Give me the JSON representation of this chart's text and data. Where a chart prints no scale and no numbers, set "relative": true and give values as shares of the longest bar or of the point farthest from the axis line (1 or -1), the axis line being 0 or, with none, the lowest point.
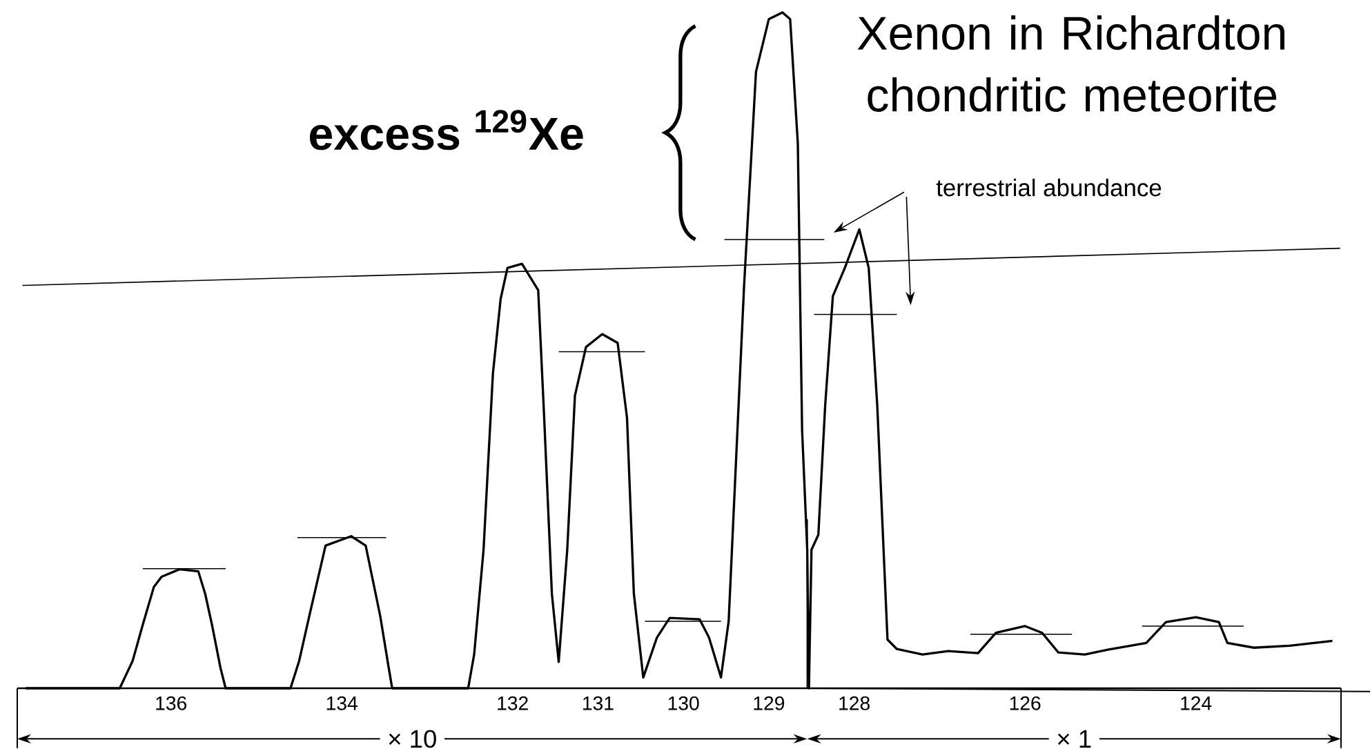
{
  "chart_data": {
    "type": "line",
    "title": "Xenon in Richardton chondritic meteorite",
    "relative": true,
    "xlim": [
      137.8,
      122.3
    ],
    "xticks": [
      136,
      134,
      132,
      131,
      130,
      129,
      128,
      126,
      124
    ],
    "series": [
      {
        "color": "#000000",
        "x": [
          137.7,
          136.6,
          136.45,
          136.33,
          136.2,
          136.11,
          135.9,
          135.68,
          135.6,
          135.52,
          135.42,
          135.36,
          134.6,
          134.5,
          134.38,
          134.19,
          133.89,
          133.72,
          133.55,
          133.45,
          133.41,
          132.52,
          132.45,
          132.34,
          132.23,
          132.14,
          132.06,
          131.89,
          131.7,
          131.63,
          131.54,
          131.46,
          131.36,
          131.27,
          131.14,
          130.95,
          130.77,
          130.66,
          130.58,
          130.47,
          130.31,
          130.16,
          129.81,
          129.7,
          129.56,
          129.47,
          129.29,
          129.15,
          129.0,
          128.84,
          128.75,
          128.66,
          128.61,
          128.55,
          128.53,
          128.5,
          128.42,
          128.34,
          128.25,
          128.11,
          127.94,
          127.83,
          127.73,
          127.61,
          127.5,
          127.2,
          126.9,
          126.55,
          126.34,
          126.0,
          125.8,
          125.61,
          125.3,
          125.03,
          124.58,
          124.35,
          124.0,
          123.73,
          123.63,
          123.32,
          122.9,
          122.4
        ],
        "values": [
          0,
          0,
          0.04,
          0.094,
          0.15,
          0.165,
          0.176,
          0.173,
          0.14,
          0.094,
          0.03,
          0,
          0,
          0.04,
          0.107,
          0.211,
          0.225,
          0.211,
          0.107,
          0.03,
          0,
          0,
          0.05,
          0.205,
          0.466,
          0.576,
          0.622,
          0.628,
          0.589,
          0.4,
          0.14,
          0.039,
          0.205,
          0.433,
          0.505,
          0.524,
          0.511,
          0.4,
          0.14,
          0.016,
          0.075,
          0.104,
          0.102,
          0.075,
          0.016,
          0.099,
          0.594,
          0.912,
          0.99,
          1.0,
          0.99,
          0.806,
          0.382,
          0.205,
          0,
          0.205,
          0.227,
          0.418,
          0.58,
          0.622,
          0.679,
          0.622,
          0.418,
          0.072,
          0.058,
          0.05,
          0.055,
          0.052,
          0.082,
          0.092,
          0.082,
          0.053,
          0.05,
          0.057,
          0.067,
          0.098,
          0.105,
          0.098,
          0.067,
          0.06,
          0.063,
          0.07
        ]
      },
      {
        "color": "#000000",
        "x": [
          136.33,
          135.36,
          null,
          134.52,
          133.48,
          null,
          131.46,
          130.45,
          null,
          130.45,
          129.56,
          null,
          129.52,
          128.35,
          null,
          128.47,
          127.5,
          null,
          126.64,
          125.45,
          null,
          124.63,
          123.44
        ],
        "values": [
          0.177,
          0.177,
          null,
          0.223,
          0.223,
          null,
          0.498,
          0.498,
          null,
          0.099,
          0.099,
          null,
          0.664,
          0.664,
          null,
          0.553,
          0.553,
          null,
          0.08,
          0.08,
          null,
          0.092,
          0.092
        ]
      },
      {
        "color": "#000000",
        "x": [
          137.74,
          122.31
        ],
        "values": [
          0.596,
          0.651
        ]
      }
    ],
    "ref_lines": [
      {
        "axis": "x",
        "value": 128.55
      }
    ],
    "annotations": [
      "**excess $^{129}$Xe**",
      "terrestrial abundance",
      "× 10",
      "× 1"
    ]
  }
}
